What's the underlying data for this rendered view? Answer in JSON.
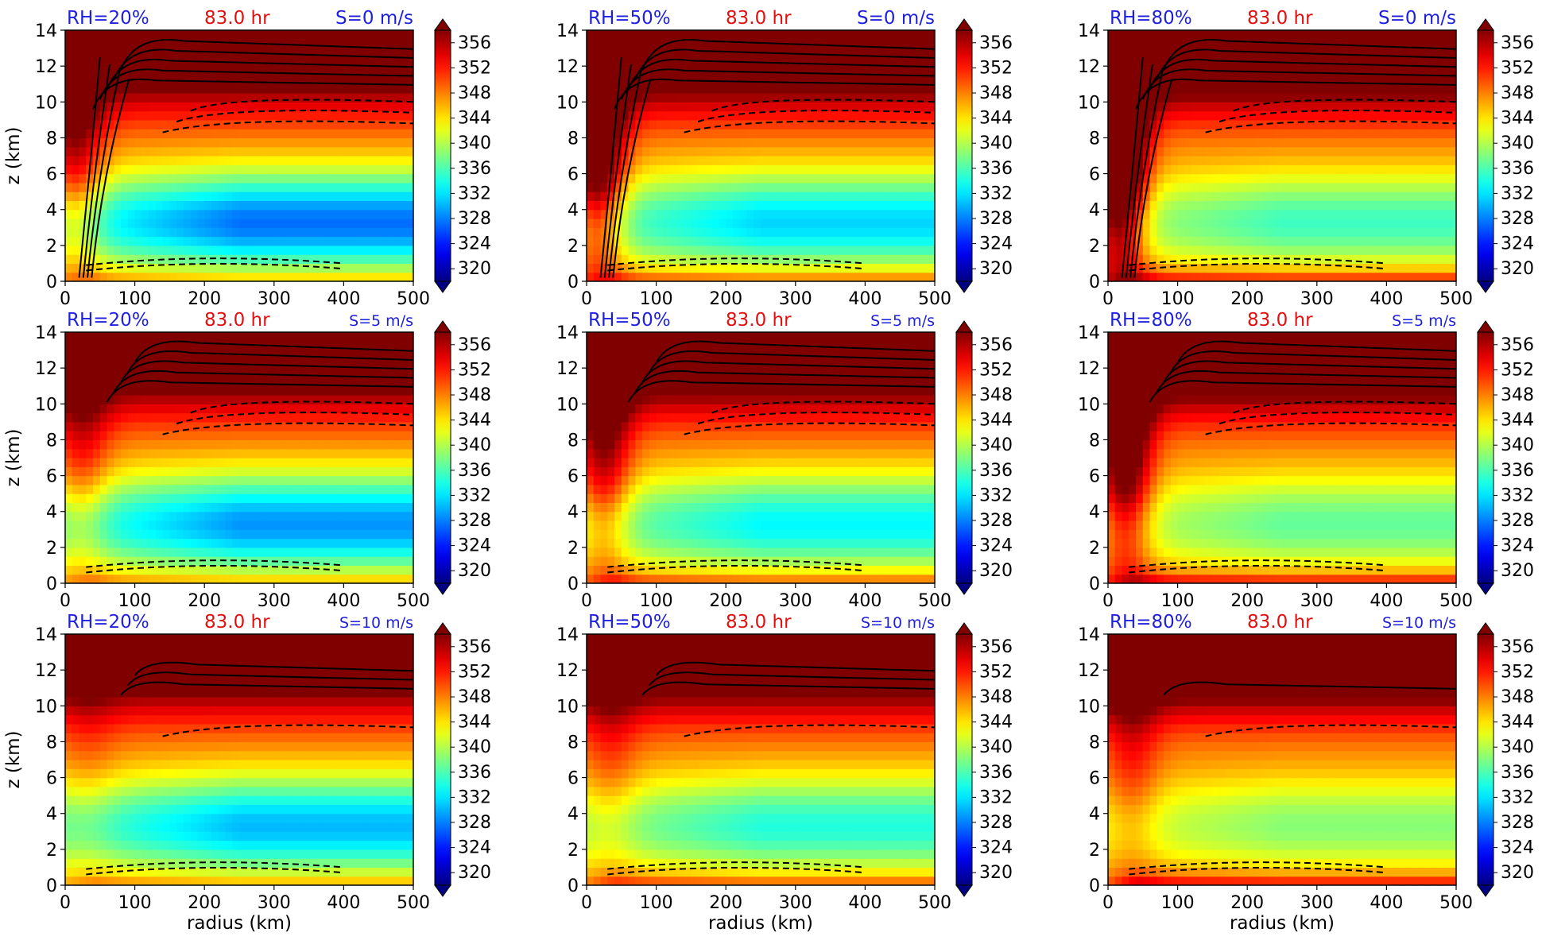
{
  "colors": {
    "rh_title": "#1f1fe0",
    "time_title": "#e01010",
    "shear_title": "#1f1fe0",
    "contour": "#000000"
  },
  "colorbar": {
    "ticks": [
      "320",
      "324",
      "328",
      "332",
      "336",
      "340",
      "344",
      "348",
      "352",
      "356"
    ],
    "min": 318,
    "max": 358
  },
  "axes": {
    "x_ticks": [
      "0",
      "100",
      "200",
      "300",
      "400",
      "500"
    ],
    "y_ticks": [
      "0",
      "2",
      "4",
      "6",
      "8",
      "10",
      "12",
      "14"
    ],
    "xlabel": "radius (km)",
    "ylabel": "z (km)",
    "xlim": [
      0,
      500
    ],
    "ylim": [
      0,
      14
    ]
  },
  "chart_data": {
    "type": "heatmap",
    "layout": "3x3",
    "variable_range": [
      320,
      356
    ],
    "panels": [
      {
        "rh": "RH=20%",
        "time": "83.0 hr",
        "shear": "S=0 m/s",
        "rh_frac": 0.2,
        "shear_ms": 0
      },
      {
        "rh": "RH=50%",
        "time": "83.0 hr",
        "shear": "S=0 m/s",
        "rh_frac": 0.5,
        "shear_ms": 0
      },
      {
        "rh": "RH=80%",
        "time": "83.0 hr",
        "shear": "S=0 m/s",
        "rh_frac": 0.8,
        "shear_ms": 0
      },
      {
        "rh": "RH=20%",
        "time": "83.0 hr",
        "shear": "S=5 m/s",
        "rh_frac": 0.2,
        "shear_ms": 5
      },
      {
        "rh": "RH=50%",
        "time": "83.0 hr",
        "shear": "S=5 m/s",
        "rh_frac": 0.5,
        "shear_ms": 5
      },
      {
        "rh": "RH=80%",
        "time": "83.0 hr",
        "shear": "S=5 m/s",
        "rh_frac": 0.8,
        "shear_ms": 5
      },
      {
        "rh": "RH=20%",
        "time": "83.0 hr",
        "shear": "S=10 m/s",
        "rh_frac": 0.2,
        "shear_ms": 10
      },
      {
        "rh": "RH=50%",
        "time": "83.0 hr",
        "shear": "S=10 m/s",
        "rh_frac": 0.5,
        "shear_ms": 10
      },
      {
        "rh": "RH=80%",
        "time": "83.0 hr",
        "shear": "S=10 m/s",
        "rh_frac": 0.8,
        "shear_ms": 10
      }
    ]
  }
}
